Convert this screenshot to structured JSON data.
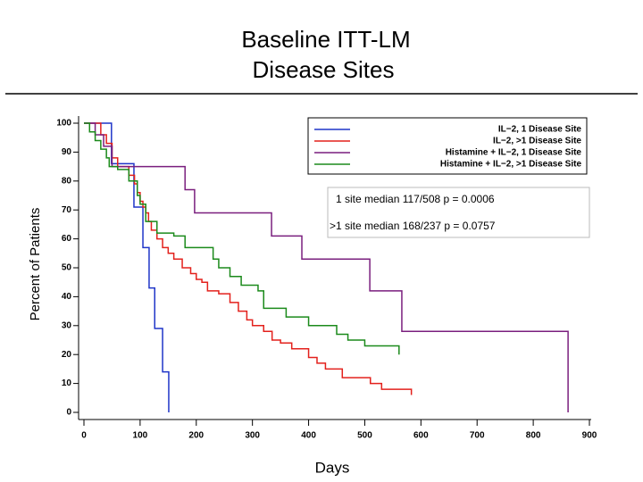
{
  "chart_data": {
    "type": "step",
    "title": [
      "Baseline ITT-LM",
      "Disease Sites"
    ],
    "x_label": "Days",
    "y_label": "Percent of Patients",
    "annotations": [
      "1 site median 117/508 p = 0.0006",
      ">1 site median 168/237 p = 0.0757"
    ],
    "xlim": [
      0,
      900
    ],
    "ylim": [
      0,
      100
    ],
    "xticks": [
      0,
      100,
      200,
      300,
      400,
      500,
      600,
      700,
      800,
      900
    ],
    "yticks": [
      0,
      10,
      20,
      30,
      40,
      50,
      60,
      70,
      80,
      90,
      100
    ],
    "legend": "upper right",
    "series": [
      {
        "name": "IL−2, 1 Disease Site",
        "color": "#1f35c8",
        "x": [
          0,
          49,
          89,
          105,
          116,
          126,
          140,
          151
        ],
        "values": [
          100,
          86,
          71,
          57,
          43,
          29,
          14,
          0
        ]
      },
      {
        "name": "IL−2, >1 Disease Site",
        "color": "#e3211c",
        "x": [
          0,
          30,
          40,
          50,
          60,
          80,
          90,
          95,
          100,
          105,
          110,
          115,
          120,
          130,
          140,
          150,
          160,
          175,
          190,
          200,
          210,
          220,
          240,
          260,
          275,
          290,
          300,
          320,
          335,
          350,
          370,
          400,
          415,
          430,
          460,
          510,
          530,
          583
        ],
        "values": [
          100,
          96,
          93,
          88,
          85,
          82,
          79,
          76,
          73,
          71,
          69,
          66,
          63,
          60,
          57,
          55,
          53,
          50,
          48,
          46,
          45,
          42,
          41,
          38,
          35,
          32,
          30,
          28,
          25,
          24,
          22,
          19,
          17,
          15,
          12,
          10,
          8,
          6
        ]
      },
      {
        "name": "Histamine + IL−2, 1 Disease Site",
        "color": "#7a1f7e",
        "x": [
          0,
          20,
          35,
          50,
          180,
          197,
          334,
          388,
          509,
          566,
          862
        ],
        "values": [
          100,
          96,
          92,
          85,
          77,
          69,
          61,
          53,
          42,
          28,
          0
        ]
      },
      {
        "name": "Histamine + IL−2, >1 Disease Site",
        "color": "#1b8a1b",
        "x": [
          0,
          10,
          20,
          30,
          40,
          45,
          60,
          80,
          95,
          100,
          110,
          130,
          160,
          180,
          230,
          240,
          260,
          280,
          310,
          320,
          360,
          400,
          450,
          470,
          500,
          561
        ],
        "values": [
          100,
          97,
          94,
          91,
          88,
          85,
          84,
          80,
          75,
          72,
          66,
          62,
          61,
          57,
          53,
          50,
          47,
          44,
          42,
          36,
          33,
          30,
          27,
          25,
          23,
          20
        ]
      }
    ]
  }
}
